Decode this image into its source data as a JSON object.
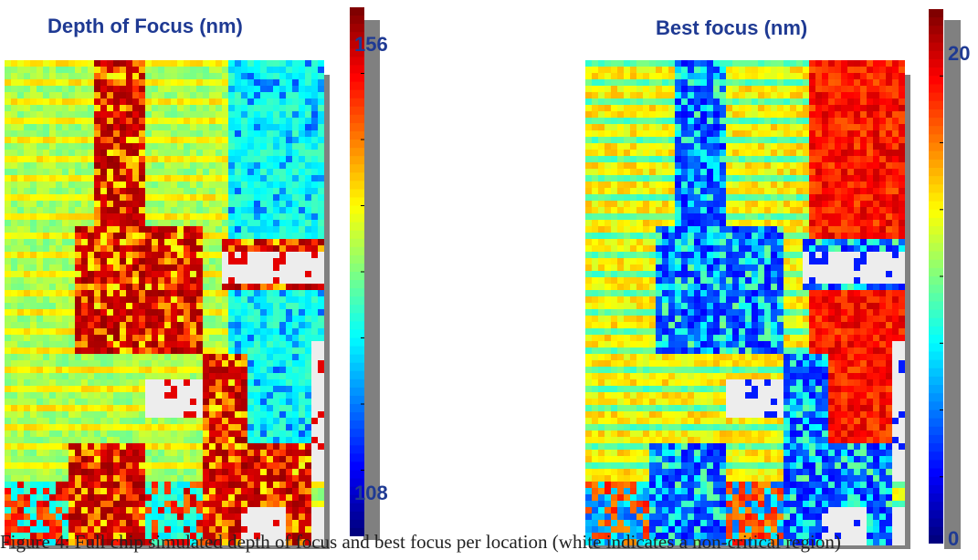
{
  "chart_data": [
    {
      "type": "heatmap",
      "title": "Depth of Focus (nm)",
      "colorbar": {
        "max_label": "156",
        "min_label": "108",
        "min": 108,
        "max": 156,
        "orientation": "blue-high"
      },
      "note": "Per-location values across the chip; white cells are non-critical regions",
      "grid": {
        "cols": 50,
        "rows": 76
      }
    },
    {
      "type": "heatmap",
      "title": "Best focus (nm)",
      "colorbar": {
        "max_label": "20",
        "min_label": "0",
        "min": 0,
        "max": 20,
        "orientation": "red-high"
      },
      "note": "Per-location values across the chip; white cells are non-critical regions",
      "grid": {
        "cols": 50,
        "rows": 76
      }
    }
  ],
  "caption": "Figure 4: Full chip simulated depth of focus and best focus per location (white indicates a non-critical region)"
}
